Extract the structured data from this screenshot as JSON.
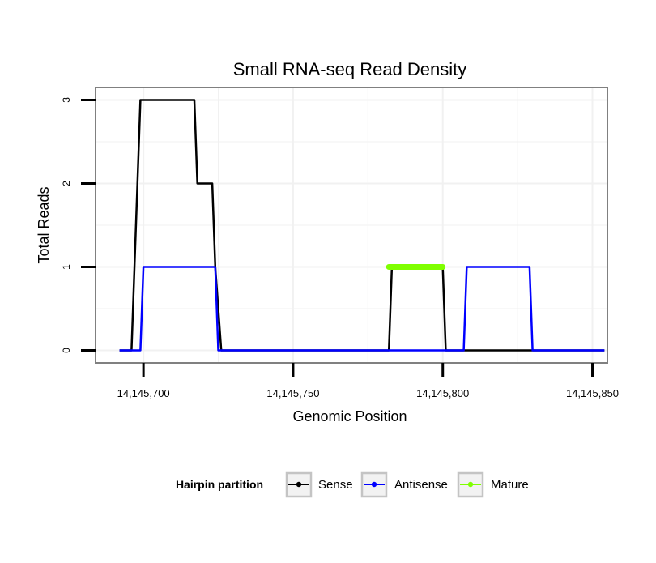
{
  "chart_data": {
    "type": "line",
    "title": "Small RNA-seq Read Density",
    "xlabel": "Genomic Position",
    "ylabel": "Total Reads",
    "xlim": [
      14145684,
      14145855
    ],
    "ylim": [
      -0.15,
      3.15
    ],
    "x_ticks": [
      14145700,
      14145750,
      14145800,
      14145850
    ],
    "x_tick_labels": [
      "14,145,700",
      "14,145,750",
      "14,145,800",
      "14,145,850"
    ],
    "y_ticks": [
      0,
      1,
      2,
      3
    ],
    "y_tick_labels": [
      "0",
      "1",
      "2",
      "3"
    ],
    "grid": true,
    "legend": {
      "title": "Hairpin partition",
      "position": "bottom"
    },
    "series": [
      {
        "name": "Sense",
        "color": "#000000",
        "x": [
          14145692,
          14145696,
          14145699,
          14145717,
          14145718,
          14145723,
          14145724,
          14145726,
          14145782,
          14145783,
          14145800,
          14145801,
          14145854
        ],
        "y": [
          0,
          0,
          3,
          3,
          2,
          2,
          1,
          0,
          0,
          1,
          1,
          0,
          0
        ]
      },
      {
        "name": "Antisense",
        "color": "#0000ff",
        "x": [
          14145692,
          14145699,
          14145700,
          14145724,
          14145725,
          14145807,
          14145808,
          14145829,
          14145830,
          14145854
        ],
        "y": [
          0,
          0,
          1,
          1,
          0,
          0,
          1,
          1,
          0,
          0
        ]
      },
      {
        "name": "Mature",
        "color": "#7fff00",
        "x": [
          14145782,
          14145800
        ],
        "y": [
          1,
          1
        ]
      }
    ]
  }
}
